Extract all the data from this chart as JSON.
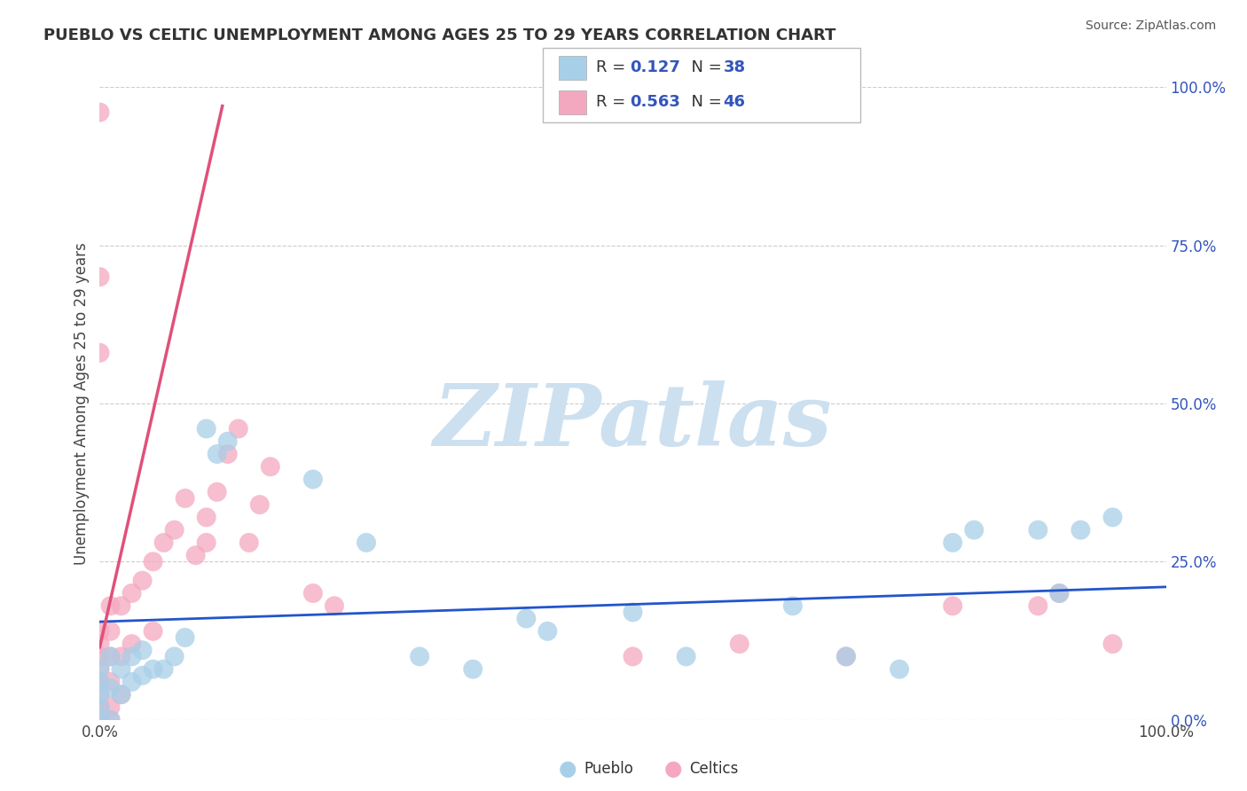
{
  "title": "PUEBLO VS CELTIC UNEMPLOYMENT AMONG AGES 25 TO 29 YEARS CORRELATION CHART",
  "source": "Source: ZipAtlas.com",
  "ylabel": "Unemployment Among Ages 25 to 29 years",
  "xlim": [
    0.0,
    1.0
  ],
  "ylim": [
    0.0,
    1.0
  ],
  "ytick_values": [
    0.0,
    0.25,
    0.5,
    0.75,
    1.0
  ],
  "ytick_labels": [
    "0.0%",
    "25.0%",
    "50.0%",
    "75.0%",
    "100.0%"
  ],
  "xtick_values": [
    0.0,
    1.0
  ],
  "xtick_labels": [
    "0.0%",
    "100.0%"
  ],
  "grid_color": "#cccccc",
  "watermark_text": "ZIPatlas",
  "watermark_color": "#cce0f0",
  "pueblo_color": "#a8cfe8",
  "celtics_color": "#f4a8c0",
  "pueblo_R": 0.127,
  "pueblo_N": 38,
  "celtics_R": 0.563,
  "celtics_N": 46,
  "pueblo_line_color": "#2255cc",
  "celtics_line_color": "#e0507a",
  "pueblo_line_x": [
    0.0,
    1.0
  ],
  "pueblo_line_y": [
    0.155,
    0.21
  ],
  "celtics_line_x": [
    0.0,
    0.115
  ],
  "celtics_line_y": [
    0.115,
    0.97
  ],
  "title_color": "#333333",
  "value_color": "#3355bb",
  "label_color": "#333333",
  "bg_color": "#ffffff",
  "pueblo_scatter_x": [
    0.0,
    0.0,
    0.0,
    0.0,
    0.0,
    0.01,
    0.01,
    0.01,
    0.02,
    0.02,
    0.03,
    0.03,
    0.04,
    0.04,
    0.05,
    0.06,
    0.07,
    0.08,
    0.1,
    0.11,
    0.12,
    0.2,
    0.25,
    0.4,
    0.5,
    0.65,
    0.8,
    0.82,
    0.88,
    0.9,
    0.92,
    0.95,
    0.3,
    0.35,
    0.42,
    0.55,
    0.7,
    0.75
  ],
  "pueblo_scatter_y": [
    0.0,
    0.02,
    0.04,
    0.06,
    0.08,
    0.0,
    0.05,
    0.1,
    0.04,
    0.08,
    0.06,
    0.1,
    0.07,
    0.11,
    0.08,
    0.08,
    0.1,
    0.13,
    0.46,
    0.42,
    0.44,
    0.38,
    0.28,
    0.16,
    0.17,
    0.18,
    0.28,
    0.3,
    0.3,
    0.2,
    0.3,
    0.32,
    0.1,
    0.08,
    0.14,
    0.1,
    0.1,
    0.08
  ],
  "celtics_scatter_x": [
    0.0,
    0.0,
    0.0,
    0.0,
    0.0,
    0.0,
    0.0,
    0.0,
    0.0,
    0.0,
    0.0,
    0.01,
    0.01,
    0.01,
    0.01,
    0.01,
    0.01,
    0.02,
    0.02,
    0.02,
    0.03,
    0.03,
    0.04,
    0.05,
    0.05,
    0.06,
    0.07,
    0.08,
    0.09,
    0.1,
    0.1,
    0.11,
    0.12,
    0.13,
    0.14,
    0.15,
    0.16,
    0.2,
    0.22,
    0.5,
    0.6,
    0.7,
    0.8,
    0.88,
    0.9,
    0.95
  ],
  "celtics_scatter_y": [
    0.0,
    0.02,
    0.04,
    0.06,
    0.08,
    0.1,
    0.12,
    0.14,
    0.58,
    0.7,
    0.96,
    0.0,
    0.02,
    0.06,
    0.1,
    0.14,
    0.18,
    0.04,
    0.1,
    0.18,
    0.12,
    0.2,
    0.22,
    0.14,
    0.25,
    0.28,
    0.3,
    0.35,
    0.26,
    0.28,
    0.32,
    0.36,
    0.42,
    0.46,
    0.28,
    0.34,
    0.4,
    0.2,
    0.18,
    0.1,
    0.12,
    0.1,
    0.18,
    0.18,
    0.2,
    0.12
  ]
}
